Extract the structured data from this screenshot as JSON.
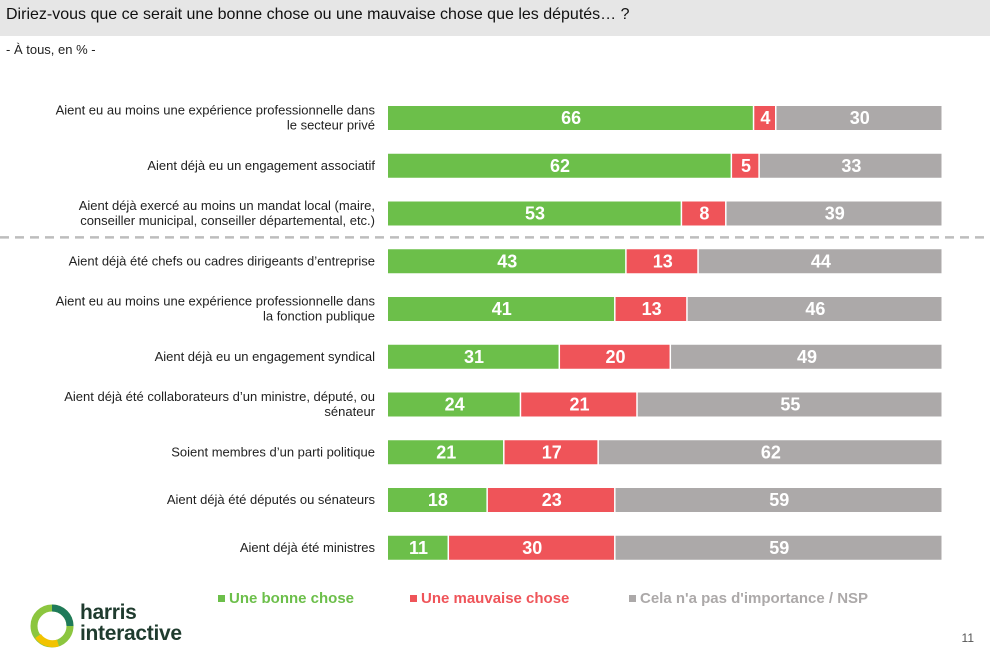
{
  "title": "Diriez-vous que ce serait une bonne chose ou une mauvaise chose que les députés… ?",
  "subtitle": "- À tous, en % -",
  "page_number": "11",
  "brand": {
    "line1": "harris",
    "line2": "interactive"
  },
  "colors": {
    "good": "#6cbf4a",
    "bad": "#ef5459",
    "neutral": "#aca9a9"
  },
  "legend": [
    {
      "label": "Une bonne chose",
      "color": "#6cbf4a"
    },
    {
      "label": "Une mauvaise chose",
      "color": "#ef5459"
    },
    {
      "label": "Cela n'a pas d'importance / NSP",
      "color": "#aca9a9"
    }
  ],
  "chart_data": {
    "type": "bar",
    "orientation": "horizontal",
    "stacked": true,
    "unit": "%",
    "xlim": [
      0,
      100
    ],
    "separator_after_index": 2,
    "categories": [
      [
        "Aient eu au moins une expérience professionnelle dans",
        "le secteur privé"
      ],
      [
        "Aient déjà eu un engagement associatif"
      ],
      [
        "Aient déjà exercé au moins un mandat local (maire,",
        "conseiller municipal, conseiller départemental, etc.)"
      ],
      [
        "Aient déjà été chefs ou cadres dirigeants d’entreprise"
      ],
      [
        "Aient eu au moins une expérience professionnelle dans",
        "la fonction publique"
      ],
      [
        "Aient déjà eu un engagement syndical"
      ],
      [
        "Aient déjà été collaborateurs d’un ministre, député, ou",
        "sénateur"
      ],
      [
        "Soient membres d’un parti politique"
      ],
      [
        "Aient déjà été députés ou sénateurs"
      ],
      [
        "Aient déjà été ministres"
      ]
    ],
    "series": [
      {
        "name": "Une bonne chose",
        "color": "#6cbf4a",
        "values": [
          66,
          62,
          53,
          43,
          41,
          31,
          24,
          21,
          18,
          11
        ]
      },
      {
        "name": "Une mauvaise chose",
        "color": "#ef5459",
        "values": [
          4,
          5,
          8,
          13,
          13,
          20,
          21,
          17,
          23,
          30
        ]
      },
      {
        "name": "Cela n'a pas d'importance / NSP",
        "color": "#aca9a9",
        "values": [
          30,
          33,
          39,
          44,
          46,
          49,
          55,
          62,
          59,
          59
        ]
      }
    ]
  }
}
